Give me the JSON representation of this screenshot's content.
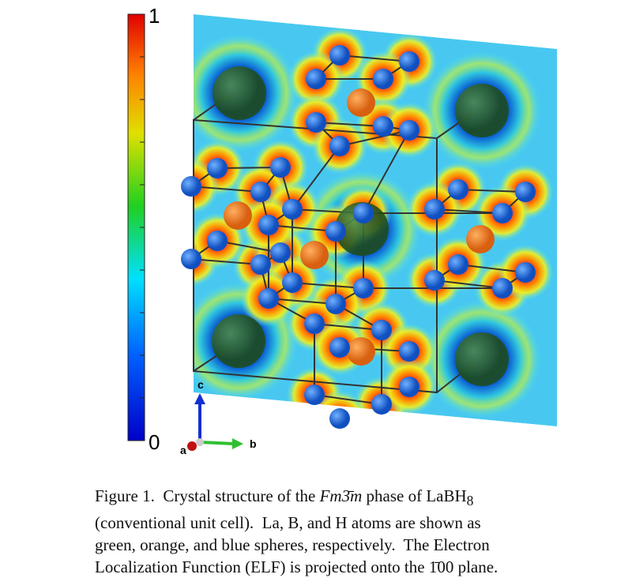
{
  "figure": {
    "colorbar": {
      "max_label": "1",
      "min_label": "0"
    },
    "axes": {
      "c": "c",
      "a": "a",
      "b": "b"
    },
    "caption": {
      "line1": [
        "Figure 1.  Crystal structure of the ",
        "Fm3̄m",
        " phase of LaBH",
        "8"
      ],
      "line2": [
        "(conventional unit cell).  La, B, and H atoms are shown as"
      ],
      "line3": [
        "green, orange, and blue spheres, respectively.  The Electron"
      ],
      "line4": [
        "Localization Function (ELF) is projected onto the ",
        "1̄00",
        " plane."
      ]
    }
  }
}
